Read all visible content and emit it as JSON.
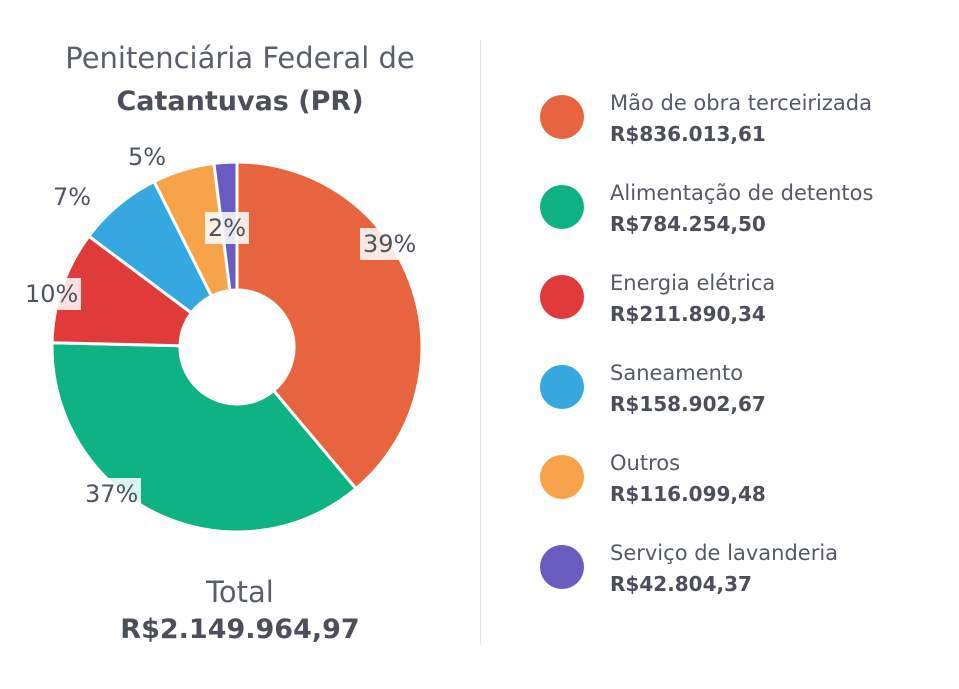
{
  "title_line1": "Penitenciária Federal de",
  "title_line2": "Catantuvas (PR)",
  "total_label": "Total",
  "total_value": "R$2.149.964,97",
  "chart_data": {
    "type": "pie",
    "donut": true,
    "categories": [
      "Mão de obra terceirizada",
      "Alimentação de detentos",
      "Energia elétrica",
      "Saneamento",
      "Outros",
      "Serviço de lavanderia"
    ],
    "values": [
      836013.61,
      784254.5,
      211890.34,
      158902.67,
      116099.48,
      42804.37
    ],
    "value_labels": [
      "R$836.013,61",
      "R$784.254,50",
      "R$211.890,34",
      "R$158.902,67",
      "R$116.099,48",
      "R$42.804,37"
    ],
    "percent_labels": [
      "39%",
      "37%",
      "10%",
      "7%",
      "5%",
      "2%"
    ],
    "colors": [
      "#e8643f",
      "#0fb383",
      "#e03a3a",
      "#35a8e0",
      "#f7a34a",
      "#6a5cc0"
    ],
    "legend_position": "right"
  }
}
